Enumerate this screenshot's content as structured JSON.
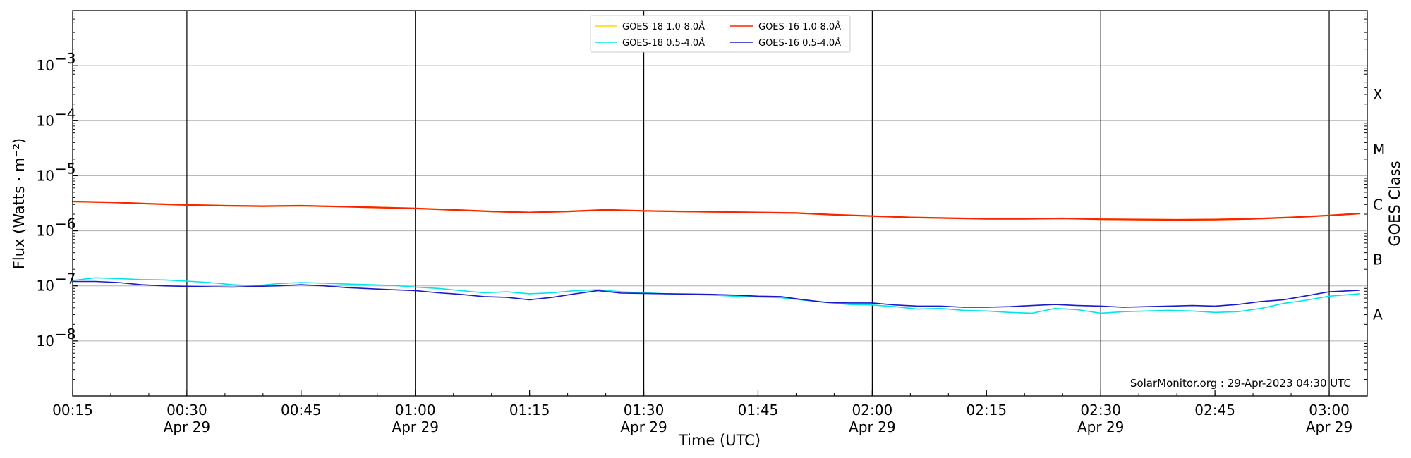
{
  "chart_data": {
    "type": "line",
    "title": "",
    "xlabel": "Time (UTC)",
    "ylabel": "Flux (Watts · m⁻²)",
    "y2label": "GOES Class",
    "yscale": "log",
    "ylim": [
      1e-09,
      0.01
    ],
    "xlim": [
      "00:15",
      "03:05"
    ],
    "grid": "horizontal at decades, vertical at 30-minute marks",
    "legend_placement": "top-center",
    "credit": "SolarMonitor.org : 29-Apr-2023 04:30 UTC",
    "y_ticks": [
      {
        "value": 1e-08,
        "mantissa": "10",
        "exp": "−8"
      },
      {
        "value": 1e-07,
        "mantissa": "10",
        "exp": "−7"
      },
      {
        "value": 1e-06,
        "mantissa": "10",
        "exp": "−6"
      },
      {
        "value": 1e-05,
        "mantissa": "10",
        "exp": "−5"
      },
      {
        "value": 0.0001,
        "mantissa": "10",
        "exp": "−4"
      },
      {
        "value": 0.001,
        "mantissa": "10",
        "exp": "−3"
      }
    ],
    "x_ticks": [
      {
        "time": "00:15",
        "label": "00:15",
        "sub": ""
      },
      {
        "time": "00:30",
        "label": "00:30",
        "sub": "Apr 29"
      },
      {
        "time": "00:45",
        "label": "00:45",
        "sub": ""
      },
      {
        "time": "01:00",
        "label": "01:00",
        "sub": "Apr 29"
      },
      {
        "time": "01:15",
        "label": "01:15",
        "sub": ""
      },
      {
        "time": "01:30",
        "label": "01:30",
        "sub": "Apr 29"
      },
      {
        "time": "01:45",
        "label": "01:45",
        "sub": ""
      },
      {
        "time": "02:00",
        "label": "02:00",
        "sub": "Apr 29"
      },
      {
        "time": "02:15",
        "label": "02:15",
        "sub": ""
      },
      {
        "time": "02:30",
        "label": "02:30",
        "sub": "Apr 29"
      },
      {
        "time": "02:45",
        "label": "02:45",
        "sub": ""
      },
      {
        "time": "03:00",
        "label": "03:00",
        "sub": "Apr 29"
      }
    ],
    "class_labels": [
      {
        "label": "A",
        "value": 3e-08
      },
      {
        "label": "B",
        "value": 3e-07
      },
      {
        "label": "C",
        "value": 3e-06
      },
      {
        "label": "M",
        "value": 3e-05
      },
      {
        "label": "X",
        "value": 0.0003
      }
    ],
    "series": [
      {
        "name": "GOES-18 1.0-8.0Å",
        "color": "#FFD700",
        "x": [
          "00:15",
          "00:20",
          "00:25",
          "00:30",
          "00:35",
          "00:40",
          "00:45",
          "00:50",
          "00:55",
          "01:00",
          "01:05",
          "01:10",
          "01:15",
          "01:20",
          "01:25",
          "01:30",
          "01:35",
          "01:40",
          "01:45",
          "01:50",
          "01:55",
          "02:00",
          "02:05",
          "02:10",
          "02:15",
          "02:20",
          "02:25",
          "02:30",
          "02:35",
          "02:40",
          "02:45",
          "02:50",
          "02:55",
          "03:00",
          "03:04"
        ],
        "y": [
          3.4e-06,
          3.3e-06,
          3.1e-06,
          2.95e-06,
          2.85e-06,
          2.8e-06,
          2.85e-06,
          2.75e-06,
          2.65e-06,
          2.55e-06,
          2.4e-06,
          2.25e-06,
          2.15e-06,
          2.25e-06,
          2.4e-06,
          2.3e-06,
          2.25e-06,
          2.2e-06,
          2.15e-06,
          2.1e-06,
          1.95e-06,
          1.85e-06,
          1.75e-06,
          1.7e-06,
          1.65e-06,
          1.65e-06,
          1.68e-06,
          1.62e-06,
          1.6e-06,
          1.58e-06,
          1.6e-06,
          1.65e-06,
          1.75e-06,
          1.9e-06,
          2.05e-06
        ]
      },
      {
        "name": "GOES-18 0.5-4.0Å",
        "color": "#00E5E5",
        "x": [
          "00:15",
          "00:18",
          "00:21",
          "00:24",
          "00:27",
          "00:30",
          "00:33",
          "00:36",
          "00:39",
          "00:42",
          "00:45",
          "00:48",
          "00:51",
          "00:54",
          "00:57",
          "01:00",
          "01:03",
          "01:06",
          "01:09",
          "01:12",
          "01:15",
          "01:18",
          "01:21",
          "01:24",
          "01:27",
          "01:30",
          "01:33",
          "01:36",
          "01:39",
          "01:42",
          "01:45",
          "01:48",
          "01:51",
          "01:54",
          "01:57",
          "02:00",
          "02:03",
          "02:06",
          "02:09",
          "02:12",
          "02:15",
          "02:18",
          "02:21",
          "02:24",
          "02:27",
          "02:30",
          "02:33",
          "02:36",
          "02:39",
          "02:42",
          "02:45",
          "02:48",
          "02:51",
          "02:54",
          "02:57",
          "03:00",
          "03:04"
        ],
        "y": [
          1.25e-07,
          1.4e-07,
          1.35e-07,
          1.3e-07,
          1.28e-07,
          1.22e-07,
          1.15e-07,
          1.05e-07,
          1e-07,
          1.1e-07,
          1.15e-07,
          1.12e-07,
          1.08e-07,
          1.05e-07,
          1.02e-07,
          9.5e-08,
          9e-08,
          8.2e-08,
          7.5e-08,
          7.8e-08,
          7.2e-08,
          7.5e-08,
          8.2e-08,
          8.5e-08,
          7.8e-08,
          7.5e-08,
          7.2e-08,
          7e-08,
          6.8e-08,
          6.5e-08,
          6.3e-08,
          6.1e-08,
          5.5e-08,
          5e-08,
          4.6e-08,
          4.5e-08,
          4.2e-08,
          3.8e-08,
          3.9e-08,
          3.6e-08,
          3.5e-08,
          3.3e-08,
          3.2e-08,
          3.9e-08,
          3.7e-08,
          3.2e-08,
          3.4e-08,
          3.5e-08,
          3.6e-08,
          3.5e-08,
          3.3e-08,
          3.4e-08,
          3.9e-08,
          4.8e-08,
          5.5e-08,
          6.5e-08,
          7.2e-08
        ]
      },
      {
        "name": "GOES-16 1.0-8.0Å",
        "color": "#FF2200",
        "x": [
          "00:15",
          "00:20",
          "00:25",
          "00:30",
          "00:35",
          "00:40",
          "00:45",
          "00:50",
          "00:55",
          "01:00",
          "01:05",
          "01:10",
          "01:15",
          "01:20",
          "01:25",
          "01:30",
          "01:35",
          "01:40",
          "01:45",
          "01:50",
          "01:55",
          "02:00",
          "02:05",
          "02:10",
          "02:15",
          "02:20",
          "02:25",
          "02:30",
          "02:35",
          "02:40",
          "02:45",
          "02:50",
          "02:55",
          "03:00",
          "03:04"
        ],
        "y": [
          3.4e-06,
          3.3e-06,
          3.1e-06,
          2.95e-06,
          2.85e-06,
          2.8e-06,
          2.85e-06,
          2.75e-06,
          2.65e-06,
          2.55e-06,
          2.4e-06,
          2.25e-06,
          2.15e-06,
          2.25e-06,
          2.4e-06,
          2.3e-06,
          2.25e-06,
          2.2e-06,
          2.15e-06,
          2.1e-06,
          1.95e-06,
          1.85e-06,
          1.75e-06,
          1.7e-06,
          1.65e-06,
          1.65e-06,
          1.68e-06,
          1.62e-06,
          1.6e-06,
          1.58e-06,
          1.6e-06,
          1.65e-06,
          1.75e-06,
          1.9e-06,
          2.05e-06
        ]
      },
      {
        "name": "GOES-16 0.5-4.0Å",
        "color": "#1A1ACC",
        "x": [
          "00:15",
          "00:18",
          "00:21",
          "00:24",
          "00:27",
          "00:30",
          "00:33",
          "00:36",
          "00:39",
          "00:42",
          "00:45",
          "00:48",
          "00:51",
          "00:54",
          "00:57",
          "01:00",
          "01:03",
          "01:06",
          "01:09",
          "01:12",
          "01:15",
          "01:18",
          "01:21",
          "01:24",
          "01:27",
          "01:30",
          "01:33",
          "01:36",
          "01:39",
          "01:42",
          "01:45",
          "01:48",
          "01:51",
          "01:54",
          "01:57",
          "02:00",
          "02:03",
          "02:06",
          "02:09",
          "02:12",
          "02:15",
          "02:18",
          "02:21",
          "02:24",
          "02:27",
          "02:30",
          "02:33",
          "02:36",
          "02:39",
          "02:42",
          "02:45",
          "02:48",
          "02:51",
          "02:54",
          "02:57",
          "03:00",
          "03:04"
        ],
        "y": [
          1.2e-07,
          1.2e-07,
          1.15e-07,
          1.05e-07,
          1e-07,
          9.8e-08,
          9.6e-08,
          9.5e-08,
          9.8e-08,
          1e-07,
          1.05e-07,
          1e-07,
          9.3e-08,
          8.9e-08,
          8.5e-08,
          8.2e-08,
          7.5e-08,
          7e-08,
          6.4e-08,
          6.2e-08,
          5.6e-08,
          6.2e-08,
          7.2e-08,
          8.2e-08,
          7.4e-08,
          7.3e-08,
          7.2e-08,
          7.1e-08,
          7e-08,
          6.8e-08,
          6.5e-08,
          6.4e-08,
          5.6e-08,
          5e-08,
          4.9e-08,
          4.9e-08,
          4.5e-08,
          4.3e-08,
          4.3e-08,
          4.1e-08,
          4.1e-08,
          4.2e-08,
          4.4e-08,
          4.6e-08,
          4.4e-08,
          4.3e-08,
          4.1e-08,
          4.2e-08,
          4.3e-08,
          4.4e-08,
          4.3e-08,
          4.6e-08,
          5.2e-08,
          5.6e-08,
          6.6e-08,
          7.8e-08,
          8.3e-08
        ]
      }
    ]
  }
}
